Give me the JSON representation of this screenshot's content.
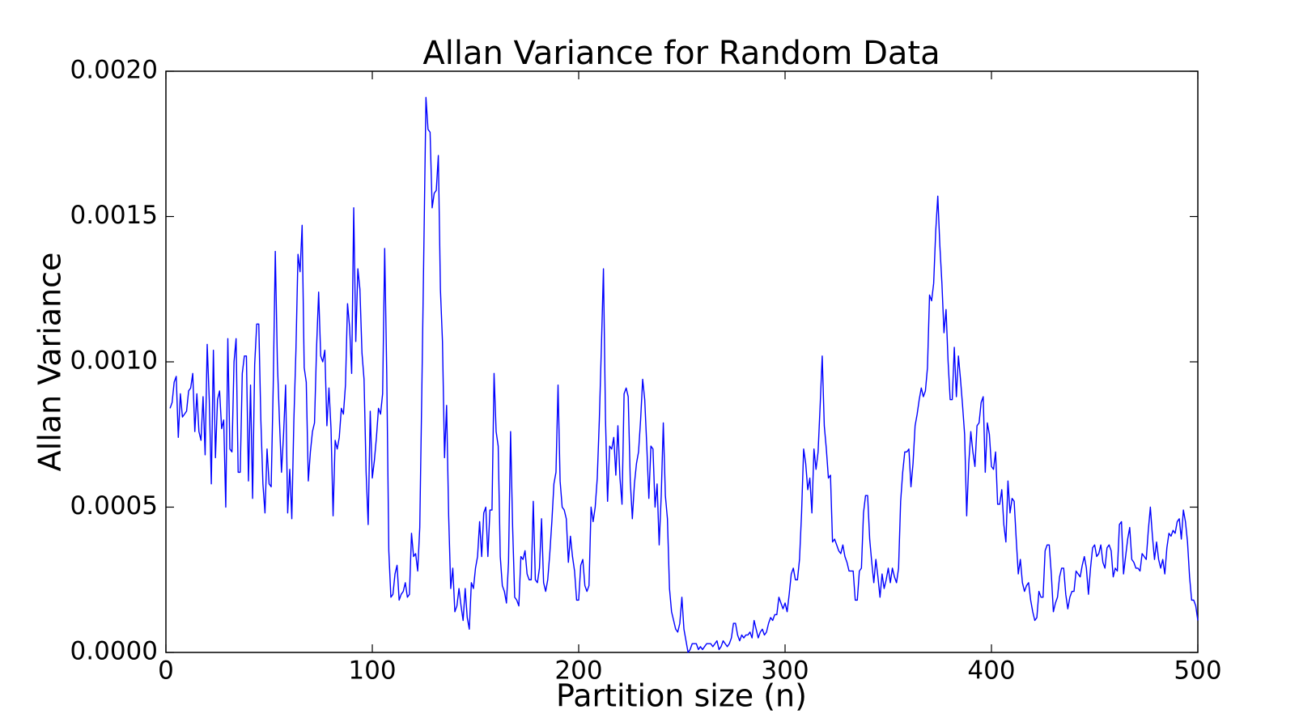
{
  "chart_data": {
    "type": "line",
    "title": "Allan Variance for Random Data",
    "xlabel": "Partition size (n)",
    "ylabel": "Allan Variance",
    "color": "#0000ff",
    "xlim": [
      0,
      500
    ],
    "xticks": [
      0,
      100,
      200,
      300,
      400,
      500
    ],
    "ylim": [
      0,
      0.002
    ],
    "yticks": [
      {
        "value": 0,
        "label": "0.0000"
      },
      {
        "value": 0.0005,
        "label": "0.0005"
      },
      {
        "value": 0.001,
        "label": "0.0010"
      },
      {
        "value": 0.0015,
        "label": "0.0015"
      },
      {
        "value": 0.002,
        "label": "0.0020"
      }
    ],
    "x": [
      2,
      3,
      4,
      5,
      6,
      7,
      8,
      9,
      10,
      11,
      12,
      13,
      14,
      15,
      16,
      17,
      18,
      19,
      20,
      21,
      22,
      23,
      24,
      25,
      26,
      27,
      28,
      29,
      30,
      31,
      32,
      33,
      34,
      35,
      36,
      37,
      38,
      39,
      40,
      41,
      42,
      43,
      44,
      45,
      46,
      47,
      48,
      49,
      50,
      51,
      52,
      53,
      54,
      55,
      56,
      57,
      58,
      59,
      60,
      61,
      62,
      63,
      64,
      65,
      66,
      67,
      68,
      69,
      70,
      71,
      72,
      73,
      74,
      75,
      76,
      77,
      78,
      79,
      80,
      81,
      82,
      83,
      84,
      85,
      86,
      87,
      88,
      89,
      90,
      91,
      92,
      93,
      94,
      95,
      96,
      97,
      98,
      99,
      100,
      101,
      102,
      103,
      104,
      105,
      106,
      107,
      108,
      109,
      110,
      111,
      112,
      113,
      114,
      115,
      116,
      117,
      118,
      119,
      120,
      121,
      122,
      123,
      124,
      125,
      126,
      127,
      128,
      129,
      130,
      131,
      132,
      133,
      134,
      135,
      136,
      137,
      138,
      139,
      140,
      141,
      142,
      143,
      144,
      145,
      146,
      147,
      148,
      149,
      150,
      151,
      152,
      153,
      154,
      155,
      156,
      157,
      158,
      159,
      160,
      161,
      162,
      163,
      164,
      165,
      166,
      167,
      168,
      169,
      170,
      171,
      172,
      173,
      174,
      175,
      176,
      177,
      178,
      179,
      180,
      181,
      182,
      183,
      184,
      185,
      186,
      187,
      188,
      189,
      190,
      191,
      192,
      193,
      194,
      195,
      196,
      197,
      198,
      199,
      200,
      201,
      202,
      203,
      204,
      205,
      206,
      207,
      208,
      209,
      210,
      211,
      212,
      213,
      214,
      215,
      216,
      217,
      218,
      219,
      220,
      221,
      222,
      223,
      224,
      225,
      226,
      227,
      228,
      229,
      230,
      231,
      232,
      233,
      234,
      235,
      236,
      237,
      238,
      239,
      240,
      241,
      242,
      243,
      244,
      245,
      246,
      247,
      248,
      249,
      250,
      251,
      252,
      253,
      254,
      255,
      256,
      257,
      258,
      259,
      260,
      261,
      262,
      263,
      264,
      265,
      266,
      267,
      268,
      269,
      270,
      271,
      272,
      273,
      274,
      275,
      276,
      277,
      278,
      279,
      280,
      281,
      282,
      283,
      284,
      285,
      286,
      287,
      288,
      289,
      290,
      291,
      292,
      293,
      294,
      295,
      296,
      297,
      298,
      299,
      300,
      301,
      302,
      303,
      304,
      305,
      306,
      307,
      308,
      309,
      310,
      311,
      312,
      313,
      314,
      315,
      316,
      317,
      318,
      319,
      320,
      321,
      322,
      323,
      324,
      325,
      326,
      327,
      328,
      329,
      330,
      331,
      332,
      333,
      334,
      335,
      336,
      337,
      338,
      339,
      340,
      341,
      342,
      343,
      344,
      345,
      346,
      347,
      348,
      349,
      350,
      351,
      352,
      353,
      354,
      355,
      356,
      357,
      358,
      359,
      360,
      361,
      362,
      363,
      364,
      365,
      366,
      367,
      368,
      369,
      370,
      371,
      372,
      373,
      374,
      375,
      376,
      377,
      378,
      379,
      380,
      381,
      382,
      383,
      384,
      385,
      386,
      387,
      388,
      389,
      390,
      391,
      392,
      393,
      394,
      395,
      396,
      397,
      398,
      399,
      400,
      401,
      402,
      403,
      404,
      405,
      406,
      407,
      408,
      409,
      410,
      411,
      412,
      413,
      414,
      415,
      416,
      417,
      418,
      419,
      420,
      421,
      422,
      423,
      424,
      425,
      426,
      427,
      428,
      429,
      430,
      431,
      432,
      433,
      434,
      435,
      436,
      437,
      438,
      439,
      440,
      441,
      442,
      443,
      444,
      445,
      446,
      447,
      448,
      449,
      450,
      451,
      452,
      453,
      454,
      455,
      456,
      457,
      458,
      459,
      460,
      461,
      462,
      463,
      464,
      465,
      466,
      467,
      468,
      469,
      470,
      471,
      472,
      473,
      474,
      475,
      476,
      477,
      478,
      479,
      480,
      481,
      482,
      483,
      484,
      485,
      486,
      487,
      488,
      489,
      490,
      491,
      492,
      493,
      494,
      495,
      496,
      497,
      498,
      499,
      500
    ],
    "values": [
      0.00084,
      0.00086,
      0.00093,
      0.00095,
      0.00074,
      0.00089,
      0.00081,
      0.00082,
      0.00083,
      0.0009,
      0.00091,
      0.00096,
      0.00076,
      0.00089,
      0.00076,
      0.00073,
      0.00088,
      0.00068,
      0.00106,
      0.00087,
      0.00058,
      0.00104,
      0.00067,
      0.00087,
      0.0009,
      0.00077,
      0.0008,
      0.0005,
      0.00108,
      0.0007,
      0.00069,
      0.001,
      0.00108,
      0.00062,
      0.00062,
      0.00096,
      0.00102,
      0.00102,
      0.00059,
      0.00092,
      0.00053,
      0.00099,
      0.00113,
      0.00113,
      0.0008,
      0.00058,
      0.00048,
      0.0007,
      0.00058,
      0.00057,
      0.00092,
      0.00138,
      0.001,
      0.0008,
      0.00062,
      0.00075,
      0.00092,
      0.00048,
      0.00063,
      0.00046,
      0.0008,
      0.00104,
      0.00137,
      0.00131,
      0.00147,
      0.00098,
      0.00093,
      0.00059,
      0.00069,
      0.00076,
      0.00079,
      0.00105,
      0.00124,
      0.00102,
      0.001,
      0.00104,
      0.00078,
      0.00091,
      0.00077,
      0.00047,
      0.00073,
      0.0007,
      0.00074,
      0.00084,
      0.00082,
      0.00092,
      0.0012,
      0.00112,
      0.00096,
      0.00153,
      0.00107,
      0.00132,
      0.00125,
      0.00103,
      0.00094,
      0.00062,
      0.00044,
      0.00083,
      0.0006,
      0.00066,
      0.00074,
      0.00084,
      0.00082,
      0.00089,
      0.00139,
      0.00096,
      0.00035,
      0.00019,
      0.0002,
      0.00027,
      0.0003,
      0.00018,
      0.0002,
      0.00021,
      0.00024,
      0.00019,
      0.0002,
      0.00041,
      0.00033,
      0.00034,
      0.00028,
      0.00043,
      0.0009,
      0.0014,
      0.00191,
      0.0018,
      0.00179,
      0.00153,
      0.00158,
      0.00159,
      0.00171,
      0.00125,
      0.00107,
      0.00067,
      0.00085,
      0.00047,
      0.00022,
      0.00029,
      0.00014,
      0.00016,
      0.00022,
      0.00016,
      0.00011,
      0.00022,
      0.00012,
      8e-05,
      0.00024,
      0.00022,
      0.00029,
      0.00033,
      0.00045,
      0.00033,
      0.00048,
      0.0005,
      0.00033,
      0.00049,
      0.00049,
      0.00096,
      0.00076,
      0.00071,
      0.00033,
      0.00023,
      0.00021,
      0.00017,
      0.00031,
      0.00076,
      0.00043,
      0.00019,
      0.00018,
      0.00016,
      0.00033,
      0.00032,
      0.00035,
      0.00027,
      0.00025,
      0.00025,
      0.00052,
      0.00025,
      0.00024,
      0.00029,
      0.00046,
      0.00024,
      0.00021,
      0.00025,
      0.00034,
      0.00045,
      0.00058,
      0.00062,
      0.00092,
      0.00059,
      0.0005,
      0.00049,
      0.00046,
      0.00031,
      0.0004,
      0.00033,
      0.00028,
      0.00018,
      0.00018,
      0.0003,
      0.00032,
      0.00023,
      0.00021,
      0.00023,
      0.0005,
      0.00045,
      0.0005,
      0.0006,
      0.0008,
      0.00105,
      0.00132,
      0.0008,
      0.00052,
      0.00071,
      0.0007,
      0.00074,
      0.00061,
      0.00078,
      0.0006,
      0.00051,
      0.00089,
      0.00091,
      0.00088,
      0.00059,
      0.00046,
      0.00058,
      0.00065,
      0.00069,
      0.0008,
      0.00094,
      0.00087,
      0.00071,
      0.00053,
      0.00071,
      0.0007,
      0.0005,
      0.00058,
      0.00037,
      0.00054,
      0.00079,
      0.00054,
      0.00046,
      0.00022,
      0.00014,
      0.00011,
      8e-05,
      7e-05,
      0.0001,
      0.00019,
      8e-05,
      4e-05,
      0,
      1e-05,
      3e-05,
      3e-05,
      3e-05,
      1e-05,
      2e-05,
      1e-05,
      2e-05,
      3e-05,
      3e-05,
      3e-05,
      2e-05,
      3e-05,
      4e-05,
      1e-05,
      2e-05,
      4e-05,
      3e-05,
      2e-05,
      3e-05,
      5e-05,
      0.0001,
      0.0001,
      6e-05,
      4e-05,
      6e-05,
      5e-05,
      6e-05,
      6e-05,
      7e-05,
      5e-05,
      0.00011,
      8e-05,
      5e-05,
      7e-05,
      8e-05,
      6e-05,
      7e-05,
      0.0001,
      0.00012,
      0.00011,
      0.00013,
      0.00013,
      0.00019,
      0.00017,
      0.00015,
      0.00017,
      0.00014,
      0.0002,
      0.00027,
      0.00029,
      0.00025,
      0.00025,
      0.00032,
      0.00048,
      0.0007,
      0.00065,
      0.00056,
      0.0006,
      0.00048,
      0.0007,
      0.00063,
      0.00069,
      0.00085,
      0.00102,
      0.00078,
      0.0007,
      0.0006,
      0.00061,
      0.00038,
      0.00039,
      0.00037,
      0.00035,
      0.00034,
      0.00037,
      0.00033,
      0.00031,
      0.00028,
      0.00028,
      0.00028,
      0.00018,
      0.00018,
      0.00028,
      0.00029,
      0.00048,
      0.00054,
      0.00054,
      0.00039,
      0.00031,
      0.00024,
      0.00032,
      0.00026,
      0.00019,
      0.00027,
      0.00022,
      0.00025,
      0.00029,
      0.00024,
      0.00029,
      0.00026,
      0.00024,
      0.00029,
      0.00052,
      0.00062,
      0.00069,
      0.00069,
      0.0007,
      0.00057,
      0.00065,
      0.00078,
      0.00082,
      0.00087,
      0.00091,
      0.00088,
      0.0009,
      0.00098,
      0.00123,
      0.00121,
      0.00127,
      0.00145,
      0.00157,
      0.0014,
      0.00127,
      0.0011,
      0.00118,
      0.001,
      0.00087,
      0.00087,
      0.00105,
      0.00088,
      0.00102,
      0.00094,
      0.00085,
      0.00075,
      0.00047,
      0.00065,
      0.00076,
      0.00069,
      0.00064,
      0.00078,
      0.00079,
      0.00086,
      0.00088,
      0.00062,
      0.00079,
      0.00075,
      0.00064,
      0.00063,
      0.00069,
      0.00051,
      0.00051,
      0.00056,
      0.00044,
      0.00038,
      0.00059,
      0.00048,
      0.00053,
      0.00052,
      0.00039,
      0.00027,
      0.00032,
      0.00024,
      0.00021,
      0.00023,
      0.00024,
      0.00018,
      0.00014,
      0.00011,
      0.00012,
      0.00021,
      0.00019,
      0.00019,
      0.00035,
      0.00037,
      0.00037,
      0.00027,
      0.00014,
      0.00017,
      0.00019,
      0.00026,
      0.00029,
      0.00029,
      0.0002,
      0.00015,
      0.00019,
      0.00021,
      0.00021,
      0.00028,
      0.00027,
      0.00026,
      0.0003,
      0.00033,
      0.00029,
      0.0002,
      0.00029,
      0.00036,
      0.00037,
      0.00033,
      0.00034,
      0.00037,
      0.00031,
      0.00029,
      0.00036,
      0.00037,
      0.00035,
      0.00026,
      0.00029,
      0.00028,
      0.00044,
      0.00045,
      0.00027,
      0.00033,
      0.00039,
      0.00043,
      0.00032,
      0.00031,
      0.00029,
      0.00029,
      0.00028,
      0.00034,
      0.00033,
      0.00032,
      0.00042,
      0.0005,
      0.0004,
      0.00032,
      0.00038,
      0.00032,
      0.00029,
      0.00032,
      0.00027,
      0.00036,
      0.00041,
      0.0004,
      0.00042,
      0.00041,
      0.00045,
      0.00046,
      0.00039,
      0.00049,
      0.00045,
      0.00038,
      0.00026,
      0.00018,
      0.00018,
      0.00016,
      0.00011
    ]
  }
}
